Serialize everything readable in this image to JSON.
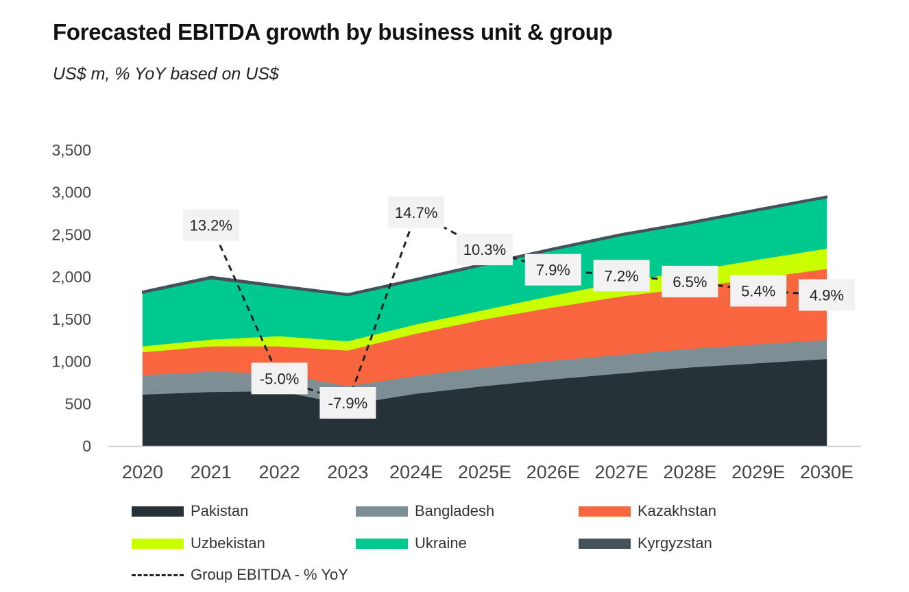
{
  "title": "Forecasted EBITDA growth by business unit & group",
  "subtitle": "US$ m, % YoY based on US$",
  "colors": {
    "Pakistan": "#263238",
    "Bangladesh": "#7d8e94",
    "Kazakhstan": "#f7663f",
    "Uzbekistan": "#c9ff00",
    "Ukraine": "#00c98f",
    "Kyrgyzstan": "#44525b",
    "yoy_line": "#222222",
    "label_bg": "#f2f2f2",
    "axis": "#cccccc"
  },
  "legend": {
    "items": [
      {
        "name": "Pakistan",
        "type": "area"
      },
      {
        "name": "Bangladesh",
        "type": "area"
      },
      {
        "name": "Kazakhstan",
        "type": "area"
      },
      {
        "name": "Uzbekistan",
        "type": "area"
      },
      {
        "name": "Ukraine",
        "type": "area"
      },
      {
        "name": "Kyrgyzstan",
        "type": "area"
      },
      {
        "name": "Group EBITDA - % YoY",
        "type": "line"
      }
    ]
  },
  "chart_data": {
    "type": "area",
    "stacked": true,
    "categories": [
      "2020",
      "2021",
      "2022",
      "2023",
      "2024E",
      "2025E",
      "2026E",
      "2027E",
      "2028E",
      "2029E",
      "2030E"
    ],
    "ylim": [
      0,
      3500
    ],
    "yticks": [
      0,
      500,
      1000,
      1500,
      2000,
      2500,
      3000,
      3500
    ],
    "ytick_labels": [
      "0",
      "500",
      "1,000",
      "1,500",
      "2,000",
      "2,500",
      "3,000",
      "3,500"
    ],
    "grid": false,
    "series": [
      {
        "name": "Pakistan",
        "values": [
          610,
          640,
          650,
          490,
          620,
          710,
          790,
          860,
          930,
          980,
          1030
        ]
      },
      {
        "name": "Bangladesh",
        "values": [
          230,
          240,
          210,
          220,
          210,
          220,
          220,
          220,
          220,
          225,
          225
        ]
      },
      {
        "name": "Kazakhstan",
        "values": [
          270,
          300,
          320,
          420,
          500,
          570,
          630,
          690,
          720,
          780,
          840
        ]
      },
      {
        "name": "Uzbekistan",
        "values": [
          70,
          80,
          120,
          110,
          110,
          110,
          140,
          170,
          200,
          220,
          240
        ]
      },
      {
        "name": "Ukraine",
        "values": [
          630,
          720,
          580,
          540,
          520,
          530,
          540,
          550,
          560,
          580,
          600
        ]
      },
      {
        "name": "Kyrgyzstan",
        "values": [
          20,
          25,
          20,
          20,
          20,
          20,
          20,
          20,
          20,
          20,
          20
        ]
      }
    ],
    "yoy_line": {
      "name": "Group EBITDA - % YoY",
      "style": "dashed",
      "points": [
        {
          "category": "2021",
          "value": 13.2,
          "label": "13.2%"
        },
        {
          "category": "2022",
          "value": -5.0,
          "label": "-5.0%"
        },
        {
          "category": "2023",
          "value": -7.9,
          "label": "-7.9%"
        },
        {
          "category": "2024E",
          "value": 14.7,
          "label": "14.7%"
        },
        {
          "category": "2025E",
          "value": 10.3,
          "label": "10.3%"
        },
        {
          "category": "2026E",
          "value": 7.9,
          "label": "7.9%"
        },
        {
          "category": "2027E",
          "value": 7.2,
          "label": "7.2%"
        },
        {
          "category": "2028E",
          "value": 6.5,
          "label": "6.5%"
        },
        {
          "category": "2029E",
          "value": 5.4,
          "label": "5.4%"
        },
        {
          "category": "2030E",
          "value": 4.9,
          "label": "4.9%"
        }
      ]
    }
  }
}
